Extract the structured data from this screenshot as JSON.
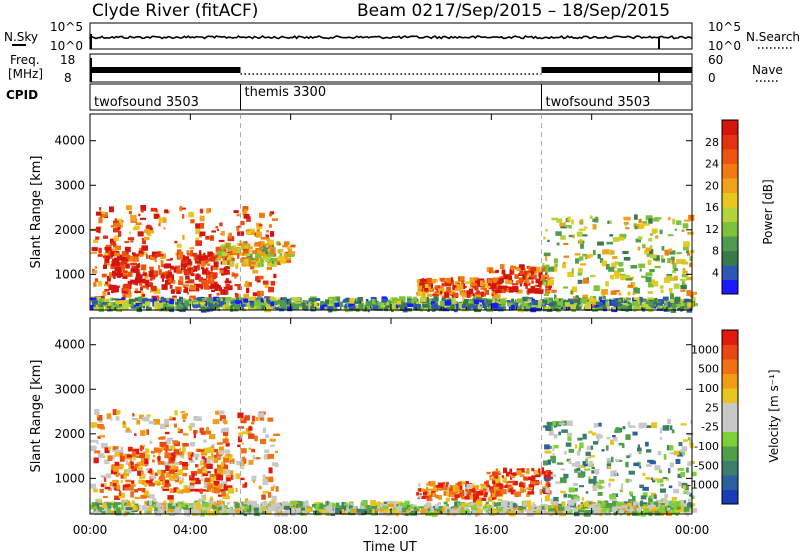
{
  "header": {
    "station": "Clyde River (fitACF)",
    "beam": "Beam 02",
    "date_range": "17/Sep/2015 – 18/Sep/2015"
  },
  "summary": {
    "nsky_label": "N.Sky",
    "nsearch_label": "N.Search",
    "freq_label_1": "Freq.",
    "freq_label_2": "[MHz]",
    "nave_label": "Nave",
    "cpid_label": "CPID",
    "left_tick_top": "10^5",
    "left_tick_bottom": "10^0",
    "right_tick_top": "10^5",
    "right_tick_bottom": "10^0",
    "freq_tick_top": "18",
    "freq_tick_bottom": "8",
    "nave_tick_top": "60",
    "nave_tick_bottom": "0"
  },
  "cpid_segments": [
    {
      "label": "twofsound 3503",
      "start_hour": 0
    },
    {
      "label": "themis 3300",
      "start_hour": 6
    },
    {
      "label": "twofsound 3503",
      "start_hour": 18
    }
  ],
  "axis": {
    "xlabel": "Time UT",
    "ylabel": "Slant Range [km]"
  },
  "chart_data": [
    {
      "type": "heatmap",
      "title": "",
      "xlabel": "Time UT",
      "ylabel": "Slant Range [km]",
      "x_ticks": [
        "00:00",
        "04:00",
        "08:00",
        "12:00",
        "16:00",
        "20:00",
        "00:00"
      ],
      "x_range_hours": [
        0,
        24
      ],
      "y_ticks": [
        1000,
        2000,
        3000,
        4000
      ],
      "ylim": [
        200,
        4600
      ],
      "colorbar": {
        "label": "Power [dB]",
        "ticks": [
          "4",
          "8",
          "12",
          "16",
          "20",
          "24",
          "28"
        ],
        "colors": [
          "#1a1aff",
          "#2d57b0",
          "#3a7a4a",
          "#4f9a50",
          "#7cc23c",
          "#b5d43c",
          "#e8c81f",
          "#f0a21a",
          "#f27a12",
          "#ee5410",
          "#e43210",
          "#d4140e"
        ]
      },
      "echo_regions": [
        {
          "t0": 0.0,
          "t1": 7.4,
          "r0": 400,
          "r1": 2500,
          "level": 9
        },
        {
          "t0": 0.5,
          "t1": 5.5,
          "r0": 600,
          "r1": 1500,
          "level": 11
        },
        {
          "t0": 5.0,
          "t1": 8.0,
          "r0": 1200,
          "r1": 1700,
          "level": 6
        },
        {
          "t0": 13.0,
          "t1": 16.3,
          "r0": 500,
          "r1": 900,
          "level": 9
        },
        {
          "t0": 15.8,
          "t1": 18.3,
          "r0": 600,
          "r1": 1200,
          "level": 10
        },
        {
          "t0": 18.0,
          "t1": 24.0,
          "r0": 300,
          "r1": 2300,
          "level": 5
        },
        {
          "t0": 0.0,
          "t1": 24.0,
          "r0": 200,
          "r1": 450,
          "level": 3
        }
      ]
    },
    {
      "type": "heatmap",
      "title": "",
      "xlabel": "Time UT",
      "ylabel": "Slant Range [km]",
      "x_ticks": [
        "00:00",
        "04:00",
        "08:00",
        "12:00",
        "16:00",
        "20:00",
        "00:00"
      ],
      "x_range_hours": [
        0,
        24
      ],
      "y_ticks": [
        1000,
        2000,
        3000,
        4000
      ],
      "ylim": [
        200,
        4600
      ],
      "colorbar": {
        "label": "Velocity [m s⁻¹]",
        "ticks": [
          "1000",
          "500",
          "100",
          "25",
          "-25",
          "-100",
          "-500",
          "-1000"
        ],
        "colors": [
          "#1a3cb4",
          "#2b5f9f",
          "#3d7e6a",
          "#4f9e4a",
          "#7fcf3a",
          "#c8c8c8",
          "#c8c8c8",
          "#e8c41f",
          "#f29c16",
          "#f07014",
          "#ea4612",
          "#e01a10"
        ]
      },
      "echo_regions": [
        {
          "t0": 0.0,
          "t1": 7.4,
          "r0": 400,
          "r1": 2500,
          "level": 8
        },
        {
          "t0": 0.5,
          "t1": 5.5,
          "r0": 700,
          "r1": 1700,
          "level": 9
        },
        {
          "t0": 13.0,
          "t1": 16.3,
          "r0": 500,
          "r1": 900,
          "level": 9
        },
        {
          "t0": 15.8,
          "t1": 18.3,
          "r0": 600,
          "r1": 1200,
          "level": 10
        },
        {
          "t0": 18.0,
          "t1": 24.0,
          "r0": 300,
          "r1": 2300,
          "level": 4
        },
        {
          "t0": 0.0,
          "t1": 24.0,
          "r0": 200,
          "r1": 450,
          "level": 5
        }
      ]
    }
  ]
}
